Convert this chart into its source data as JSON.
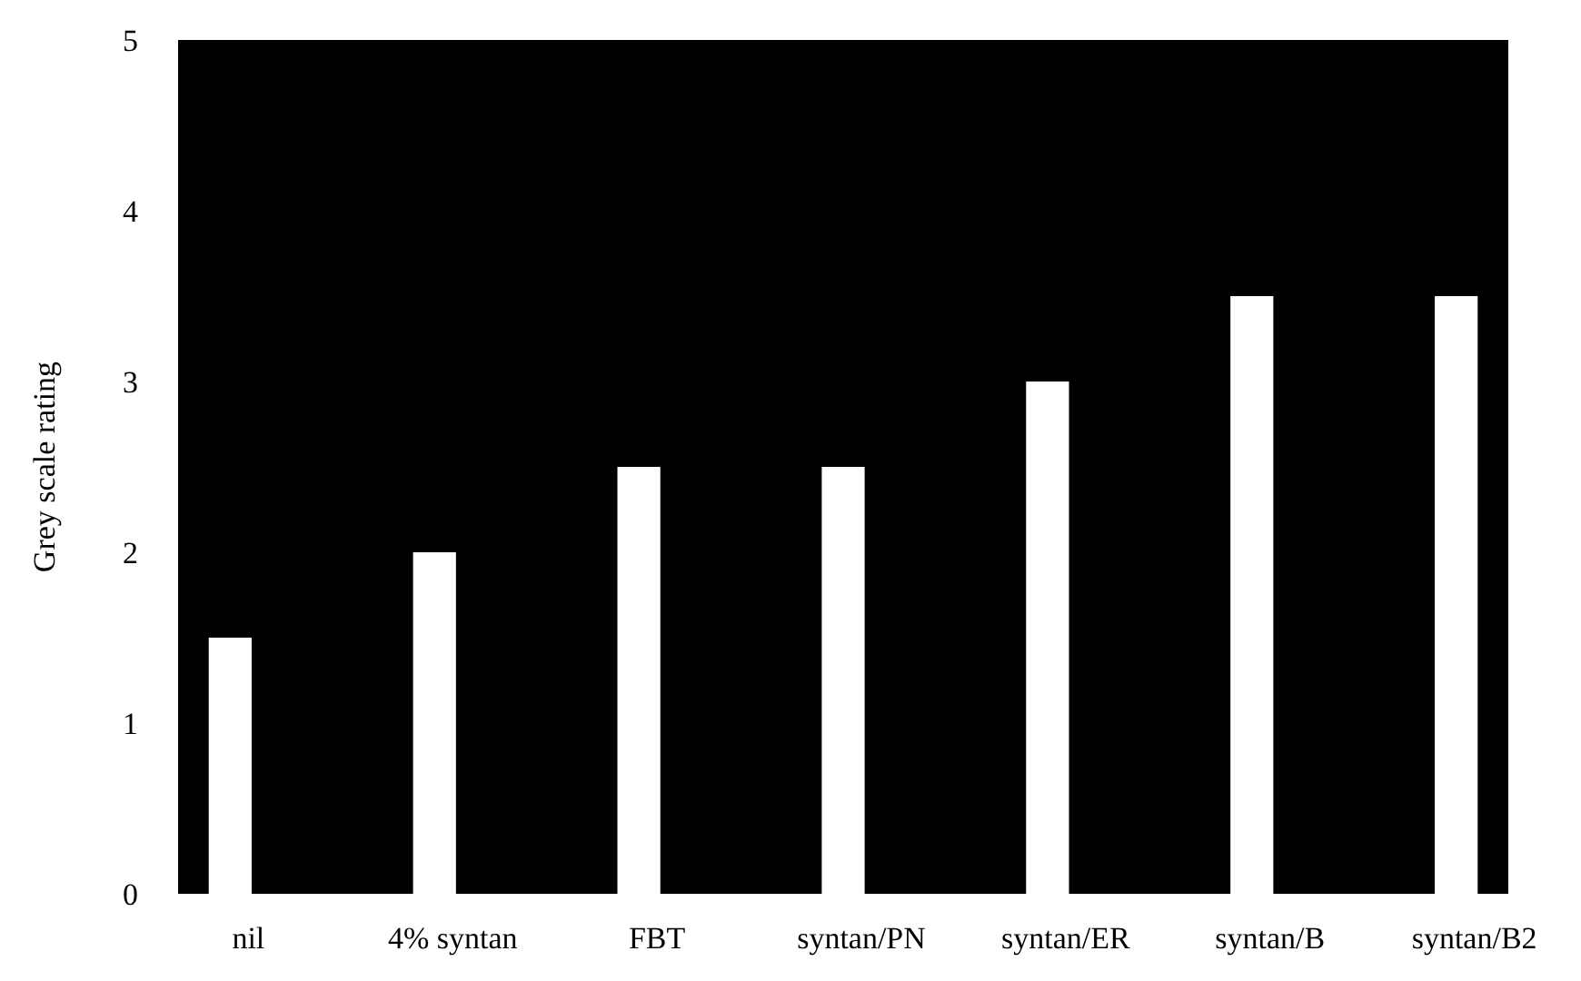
{
  "chart_data": {
    "type": "bar",
    "ylabel": "Grey scale rating",
    "categories": [
      "nil",
      "4% syntan",
      "FBT",
      "syntan/PN",
      "syntan/ER",
      "syntan/B",
      "syntan/B2"
    ],
    "values": [
      1.5,
      2,
      2.5,
      2.5,
      3,
      3.5,
      3.5
    ],
    "color": "#ffffff",
    "ylim": [
      0,
      5
    ],
    "yticks": [
      0,
      1,
      2,
      3,
      4,
      5
    ],
    "grid": false
  }
}
